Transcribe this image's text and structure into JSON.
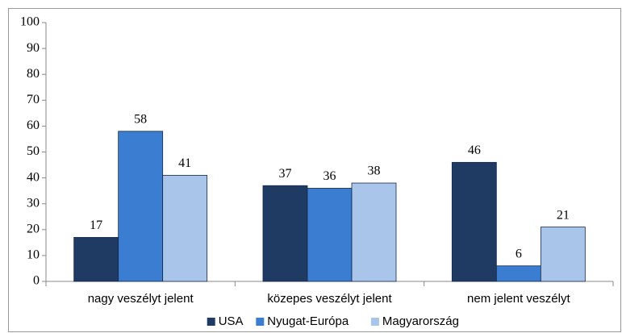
{
  "chart_data": {
    "type": "bar",
    "categories": [
      "nagy veszélyt jelent",
      "közepes veszélyt jelent",
      "nem jelent veszélyt"
    ],
    "series": [
      {
        "name": "USA",
        "color": "#1f3a63",
        "values": [
          17,
          37,
          46
        ]
      },
      {
        "name": "Nyugat-Európa",
        "color": "#3b7dd0",
        "values": [
          58,
          36,
          6
        ]
      },
      {
        "name": "Magyarország",
        "color": "#a9c5ea",
        "values": [
          41,
          38,
          21
        ]
      }
    ],
    "ylim": [
      0,
      100
    ],
    "yticks": [
      0,
      10,
      20,
      30,
      40,
      50,
      60,
      70,
      80,
      90,
      100
    ],
    "grid": false,
    "legend": "bottom"
  }
}
